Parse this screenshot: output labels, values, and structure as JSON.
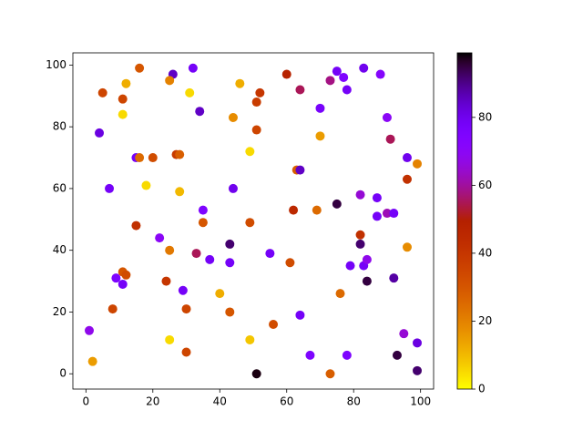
{
  "chart_data": {
    "type": "scatter",
    "x": [
      26,
      32,
      16,
      25,
      5,
      11,
      12,
      31,
      46,
      51,
      52,
      60,
      64,
      73,
      75,
      77,
      78,
      83,
      88,
      4,
      11,
      34,
      44,
      51,
      70,
      70,
      90,
      91,
      96,
      99,
      15,
      16,
      20,
      27,
      28,
      49,
      63,
      64,
      7,
      18,
      28,
      44,
      35,
      62,
      69,
      75,
      82,
      87,
      87,
      90,
      92,
      96,
      15,
      22,
      35,
      49,
      25,
      33,
      43,
      55,
      82,
      82,
      96,
      37,
      43,
      61,
      79,
      83,
      84,
      92,
      84,
      9,
      11,
      12,
      11,
      24,
      29,
      8,
      30,
      40,
      43,
      64,
      76,
      56,
      95,
      1,
      25,
      49,
      99,
      2,
      30,
      67,
      78,
      93,
      51,
      73,
      99
    ],
    "y": [
      97,
      99,
      99,
      95,
      91,
      89,
      94,
      91,
      94,
      88,
      91,
      97,
      92,
      95,
      98,
      96,
      92,
      99,
      97,
      78,
      84,
      85,
      83,
      79,
      86,
      77,
      83,
      76,
      70,
      68,
      70,
      70,
      70,
      71,
      71,
      72,
      66,
      66,
      60,
      61,
      59,
      60,
      53,
      53,
      53,
      55,
      58,
      57,
      51,
      52,
      52,
      63,
      48,
      44,
      49,
      49,
      40,
      39,
      42,
      39,
      45,
      42,
      41,
      37,
      36,
      36,
      35,
      35,
      37,
      31,
      30,
      31,
      33,
      32,
      29,
      30,
      27,
      21,
      21,
      26,
      20,
      19,
      26,
      16,
      13,
      14,
      11,
      11,
      10,
      4,
      7,
      6,
      6,
      6,
      0,
      0,
      1
    ],
    "c": [
      85,
      78,
      30,
      20,
      35,
      35,
      12,
      5,
      12,
      38,
      40,
      48,
      55,
      58,
      78,
      75,
      78,
      80,
      72,
      82,
      5,
      85,
      18,
      35,
      77,
      15,
      70,
      55,
      80,
      20,
      78,
      25,
      33,
      38,
      28,
      5,
      28,
      85,
      78,
      5,
      10,
      80,
      75,
      45,
      25,
      95,
      65,
      78,
      78,
      62,
      78,
      42,
      42,
      70,
      30,
      33,
      22,
      55,
      92,
      78,
      42,
      92,
      18,
      78,
      78,
      33,
      78,
      78,
      68,
      88,
      95,
      75,
      30,
      33,
      78,
      40,
      78,
      35,
      35,
      12,
      30,
      78,
      25,
      33,
      65,
      68,
      5,
      8,
      82,
      15,
      35,
      75,
      75,
      95,
      98,
      28,
      92
    ],
    "colormap": "gnuplot_r",
    "xlim": [
      -3.9,
      103.9
    ],
    "ylim": [
      -4.95,
      103.95
    ],
    "xticks": [
      0,
      20,
      40,
      60,
      80,
      100
    ],
    "yticks": [
      0,
      20,
      40,
      60,
      80,
      100
    ],
    "clim": [
      0,
      99
    ],
    "cticks": [
      0,
      20,
      40,
      60,
      80
    ]
  }
}
